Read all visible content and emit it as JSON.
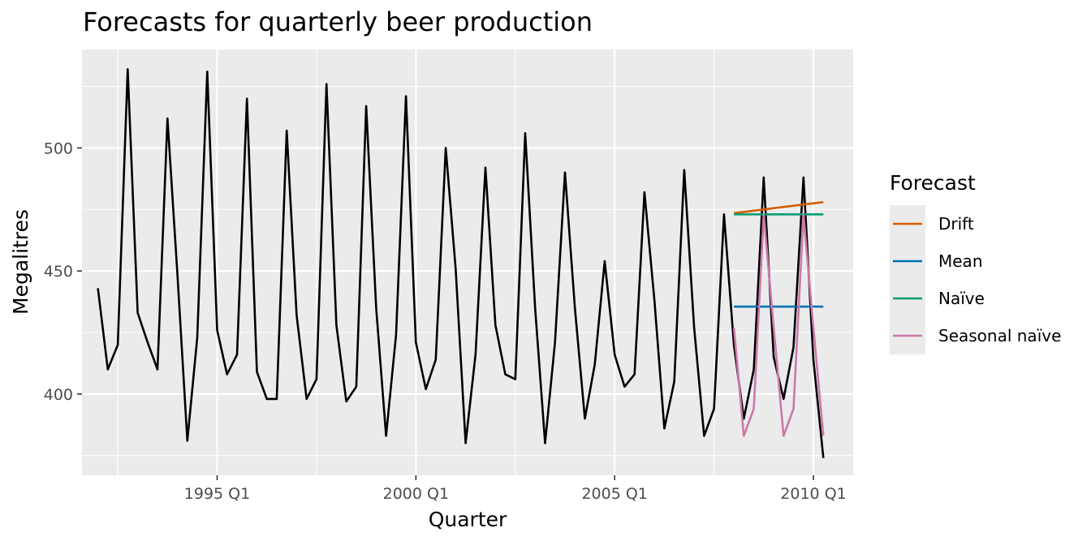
{
  "chart_data": {
    "type": "line",
    "title": "Forecasts for quarterly beer production",
    "xlabel": "Quarter",
    "ylabel": "Megalitres",
    "x_ticks": [
      {
        "label": "1995 Q1",
        "x": 1995.0
      },
      {
        "label": "2000 Q1",
        "x": 2000.0
      },
      {
        "label": "2005 Q1",
        "x": 2005.0
      },
      {
        "label": "2010 Q1",
        "x": 2010.0
      }
    ],
    "y_ticks": [
      400,
      450,
      500
    ],
    "xlim": [
      1991.6,
      2011.0
    ],
    "ylim": [
      367,
      540
    ],
    "grid": true,
    "legend": {
      "title": "Forecast",
      "position": "right",
      "entries": [
        {
          "label": "Drift",
          "color": "#d55e00"
        },
        {
          "label": "Mean",
          "color": "#0072b2"
        },
        {
          "label": "Naïve",
          "color": "#009e73"
        },
        {
          "label": "Seasonal naïve",
          "color": "#cc79a7"
        }
      ]
    },
    "series": [
      {
        "color": "#000000",
        "x": [
          1992.0,
          1992.25,
          1992.5,
          1992.75,
          1993.0,
          1993.25,
          1993.5,
          1993.75,
          1994.0,
          1994.25,
          1994.5,
          1994.75,
          1995.0,
          1995.25,
          1995.5,
          1995.75,
          1996.0,
          1996.25,
          1996.5,
          1996.75,
          1997.0,
          1997.25,
          1997.5,
          1997.75,
          1998.0,
          1998.25,
          1998.5,
          1998.75,
          1999.0,
          1999.25,
          1999.5,
          1999.75,
          2000.0,
          2000.25,
          2000.5,
          2000.75,
          2001.0,
          2001.25,
          2001.5,
          2001.75,
          2002.0,
          2002.25,
          2002.5,
          2002.75,
          2003.0,
          2003.25,
          2003.5,
          2003.75,
          2004.0,
          2004.25,
          2004.5,
          2004.75,
          2005.0,
          2005.25,
          2005.5,
          2005.75,
          2006.0,
          2006.25,
          2006.5,
          2006.75,
          2007.0,
          2007.25,
          2007.5,
          2007.75,
          2008.0,
          2008.25,
          2008.5,
          2008.75,
          2009.0,
          2009.25,
          2009.5,
          2009.75,
          2010.0,
          2010.25
        ],
        "values": [
          443,
          410,
          420,
          532,
          433,
          421,
          410,
          512,
          449,
          381,
          423,
          531,
          426,
          408,
          416,
          520,
          409,
          398,
          398,
          507,
          432,
          398,
          406,
          526,
          428,
          397,
          403,
          517,
          435,
          383,
          424,
          521,
          421,
          402,
          414,
          500,
          451,
          380,
          416,
          492,
          428,
          408,
          406,
          506,
          435,
          380,
          421,
          490,
          435,
          390,
          412,
          454,
          416,
          403,
          408,
          482,
          438,
          386,
          405,
          491,
          427,
          383,
          394,
          473,
          420,
          390,
          410,
          488,
          415,
          398,
          419,
          488,
          414,
          374
        ]
      },
      {
        "name": "Drift",
        "color": "#d55e00",
        "x": [
          2008.0,
          2008.25,
          2008.5,
          2008.75,
          2009.0,
          2009.25,
          2009.5,
          2009.75,
          2010.0,
          2010.25
        ],
        "values": [
          473.5,
          474.0,
          474.5,
          475.0,
          475.5,
          476.0,
          476.5,
          477.0,
          477.5,
          478.0
        ]
      },
      {
        "name": "Mean",
        "color": "#0072b2",
        "x": [
          2008.0,
          2008.25,
          2008.5,
          2008.75,
          2009.0,
          2009.25,
          2009.5,
          2009.75,
          2010.0,
          2010.25
        ],
        "values": [
          435.5,
          435.5,
          435.5,
          435.5,
          435.5,
          435.5,
          435.5,
          435.5,
          435.5,
          435.5
        ]
      },
      {
        "name": "Naïve",
        "color": "#009e73",
        "x": [
          2008.0,
          2008.25,
          2008.5,
          2008.75,
          2009.0,
          2009.25,
          2009.5,
          2009.75,
          2010.0,
          2010.25
        ],
        "values": [
          473,
          473,
          473,
          473,
          473,
          473,
          473,
          473,
          473,
          473
        ]
      },
      {
        "name": "Seasonal naïve",
        "color": "#cc79a7",
        "x": [
          2008.0,
          2008.25,
          2008.5,
          2008.75,
          2009.0,
          2009.25,
          2009.5,
          2009.75,
          2010.0,
          2010.25
        ],
        "values": [
          427,
          383,
          394,
          473,
          427,
          383,
          394,
          473,
          427,
          383
        ]
      }
    ]
  }
}
